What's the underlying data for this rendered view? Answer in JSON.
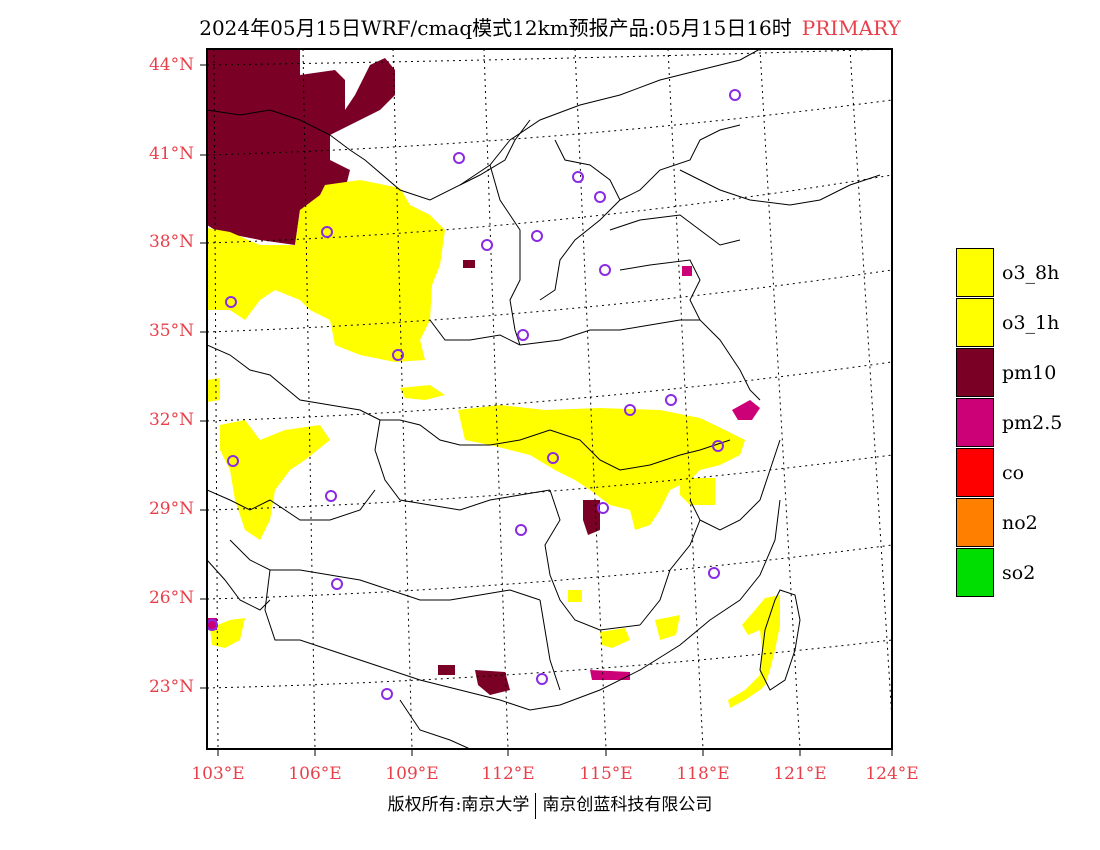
{
  "title": {
    "main": "2024年05月15日WRF/cmaq模式12km预报产品:05月15日16时",
    "tag": "PRIMARY"
  },
  "map": {
    "lat_labels": [
      "44°N",
      "41°N",
      "38°N",
      "35°N",
      "32°N",
      "29°N",
      "26°N",
      "23°N"
    ],
    "lon_labels": [
      "103°E",
      "106°E",
      "109°E",
      "112°E",
      "115°E",
      "118°E",
      "121°E",
      "124°E"
    ],
    "colors": {
      "o3_8h": "#ffff00",
      "o3_1h": "#ffff00",
      "pm10": "#7a0026",
      "pm25": "#cc0077",
      "co": "#ff0000",
      "no2": "#ff8000",
      "so2": "#00dd00",
      "station": "#8a2be2",
      "label": "#e8404a"
    }
  },
  "legend": [
    {
      "label": "o3_8h",
      "color": "#ffff00"
    },
    {
      "label": "o3_1h",
      "color": "#ffff00"
    },
    {
      "label": "pm10",
      "color": "#7a0026"
    },
    {
      "label": "pm2.5",
      "color": "#cc0077"
    },
    {
      "label": "co",
      "color": "#ff0000"
    },
    {
      "label": "no2",
      "color": "#ff8000"
    },
    {
      "label": "so2",
      "color": "#00dd00"
    }
  ],
  "footer": {
    "left": "版权所有:南京大学",
    "right": "南京创蓝科技有限公司"
  }
}
